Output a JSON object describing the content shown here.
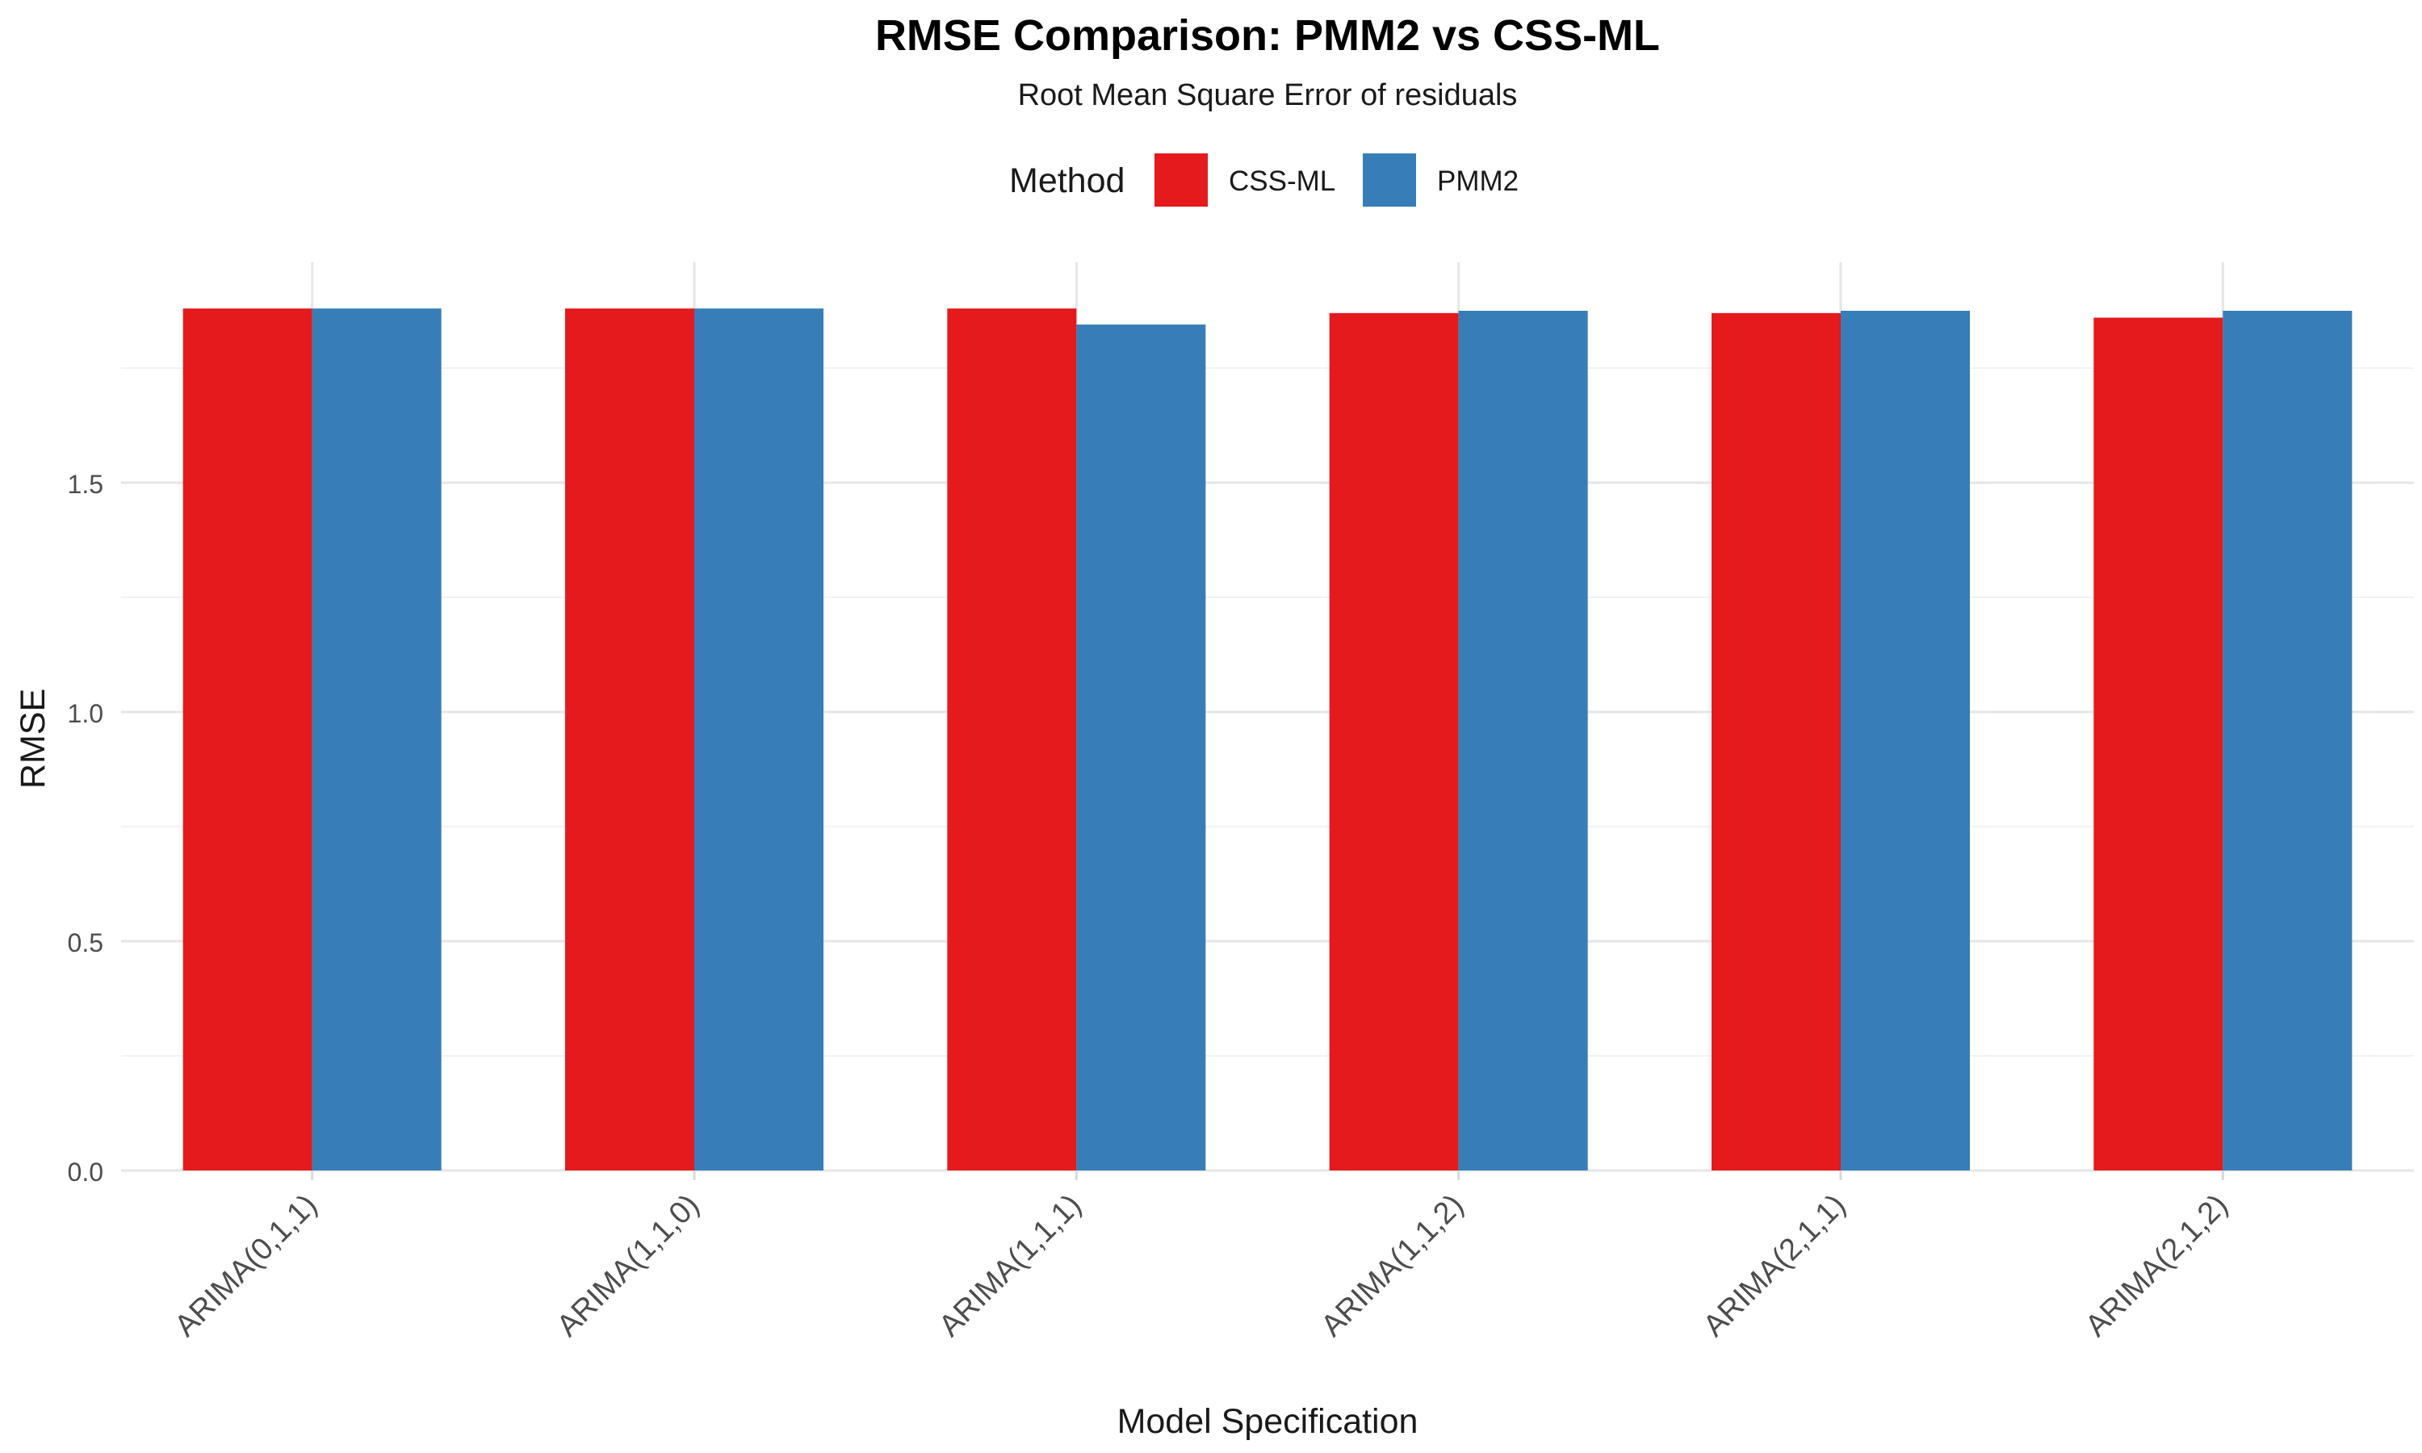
{
  "chart_data": {
    "type": "bar",
    "title": "RMSE Comparison: PMM2 vs CSS-ML",
    "subtitle": "Root Mean Square Error of residuals",
    "xlabel": "Model Specification",
    "ylabel": "RMSE",
    "ylim": [
      0,
      1.9
    ],
    "yticks": [
      "0.0",
      "0.5",
      "1.0",
      "1.5"
    ],
    "categories": [
      "ARIMA(0,1,1)",
      "ARIMA(1,1,0)",
      "ARIMA(1,1,1)",
      "ARIMA(1,1,2)",
      "ARIMA(2,1,1)",
      "ARIMA(2,1,2)"
    ],
    "legend": {
      "title": "Method",
      "position": "top"
    },
    "grid": true,
    "series": [
      {
        "name": "CSS-ML",
        "color": "#E41A1C",
        "values": [
          1.88,
          1.88,
          1.88,
          1.87,
          1.87,
          1.86
        ]
      },
      {
        "name": "PMM2",
        "color": "#377EB8",
        "values": [
          1.88,
          1.88,
          1.845,
          1.875,
          1.875,
          1.875
        ]
      }
    ]
  }
}
